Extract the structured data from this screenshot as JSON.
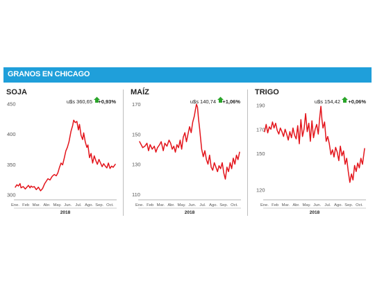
{
  "banner": {
    "title": "GRANOS EN CHICAGO"
  },
  "colors": {
    "banner": "#1f9fda",
    "line": "#e3141b",
    "up_arrow": "#2aa52a",
    "text": "#222222",
    "tick_text": "#555555"
  },
  "chart_data": [
    {
      "type": "line",
      "title": "SOJA",
      "price": "u$s 360,65",
      "change": "+0,93%",
      "change_direction": "up",
      "xlabel": "2018",
      "months": [
        "Ene.",
        "Feb",
        "Mar.",
        "Abr.",
        "May.",
        "Jun.",
        "Jul.",
        "Ago.",
        "Sep.",
        "Oct."
      ],
      "yticks": [
        300,
        350,
        400,
        450
      ],
      "ylim": [
        298,
        452
      ],
      "x": [
        0.0,
        0.15,
        0.3,
        0.45,
        0.55,
        0.75,
        0.95,
        1.1,
        1.25,
        1.4,
        1.5,
        1.65,
        1.8,
        2.0,
        2.2,
        2.4,
        2.6,
        2.7,
        2.8,
        2.95,
        3.1,
        3.3,
        3.5,
        3.7,
        3.9,
        4.05,
        4.2,
        4.35,
        4.5,
        4.65,
        4.8,
        4.95,
        5.1,
        5.2,
        5.3,
        5.45,
        5.55,
        5.7,
        5.85,
        6.0,
        6.1,
        6.25,
        6.4,
        6.5,
        6.65,
        6.8,
        6.9,
        7.05,
        7.2,
        7.35,
        7.5,
        7.65,
        7.8,
        7.95,
        8.1,
        8.25,
        8.4,
        8.55,
        8.7,
        8.85,
        9.0,
        9.15,
        9.3,
        9.5
      ],
      "values": [
        312,
        316,
        314,
        318,
        311,
        313,
        309,
        312,
        315,
        311,
        314,
        312,
        313,
        308,
        312,
        306,
        310,
        314,
        318,
        322,
        326,
        324,
        330,
        333,
        331,
        336,
        345,
        352,
        349,
        360,
        372,
        378,
        387,
        396,
        405,
        414,
        423,
        419,
        421,
        407,
        416,
        398,
        391,
        402,
        387,
        378,
        382,
        361,
        368,
        352,
        364,
        356,
        350,
        358,
        352,
        346,
        351,
        347,
        344,
        352,
        343,
        347,
        345,
        350
      ]
    },
    {
      "type": "line",
      "title": "MAÍZ",
      "price": "u$s 140,74",
      "change": "+1,06%",
      "change_direction": "up",
      "xlabel": "2018",
      "months": [
        "Ene.",
        "Feb",
        "Mar.",
        "Abr.",
        "May.",
        "Jun.",
        "Jul.",
        "Ago.",
        "Sep.",
        "Oct."
      ],
      "yticks": [
        110,
        130,
        150,
        170
      ],
      "ylim": [
        109,
        171
      ],
      "x": [
        0.0,
        0.15,
        0.3,
        0.5,
        0.7,
        0.85,
        1.0,
        1.2,
        1.4,
        1.55,
        1.7,
        1.9,
        2.05,
        2.25,
        2.4,
        2.6,
        2.8,
        2.95,
        3.1,
        3.25,
        3.4,
        3.55,
        3.7,
        3.85,
        4.0,
        4.15,
        4.3,
        4.45,
        4.6,
        4.75,
        4.9,
        5.05,
        5.2,
        5.3,
        5.4,
        5.5,
        5.6,
        5.7,
        5.8,
        5.9,
        6.05,
        6.2,
        6.35,
        6.5,
        6.65,
        6.8,
        6.95,
        7.1,
        7.25,
        7.4,
        7.55,
        7.7,
        7.85,
        8.0,
        8.15,
        8.3,
        8.45,
        8.6,
        8.75,
        8.9,
        9.05,
        9.2,
        9.35,
        9.5
      ],
      "values": [
        145,
        143,
        141,
        142,
        144,
        139,
        143,
        140,
        142,
        138,
        141,
        143,
        145,
        139,
        144,
        142,
        146,
        144,
        140,
        142,
        138,
        143,
        141,
        146,
        140,
        148,
        151,
        145,
        150,
        155,
        151,
        158,
        162,
        166,
        170,
        168,
        160,
        154,
        147,
        140,
        135,
        139,
        133,
        130,
        136,
        128,
        126,
        131,
        128,
        125,
        129,
        127,
        131,
        124,
        120,
        128,
        125,
        131,
        127,
        134,
        130,
        136,
        133,
        138
      ]
    },
    {
      "type": "line",
      "title": "TRIGO",
      "price": "u$s 154,42",
      "change": "+0,06%",
      "change_direction": "up",
      "xlabel": "2018",
      "months": [
        "Ene.",
        "Feb",
        "Mar.",
        "Abr.",
        "May.",
        "Jun.",
        "Jul.",
        "Ago.",
        "Sep.",
        "Oct."
      ],
      "yticks": [
        120,
        150,
        170,
        190
      ],
      "ylim": [
        115,
        192
      ],
      "x": [
        0.0,
        0.15,
        0.3,
        0.45,
        0.6,
        0.75,
        0.9,
        1.05,
        1.2,
        1.35,
        1.5,
        1.65,
        1.8,
        1.95,
        2.1,
        2.25,
        2.4,
        2.55,
        2.7,
        2.85,
        3.0,
        3.15,
        3.3,
        3.45,
        3.6,
        3.75,
        3.9,
        4.05,
        4.2,
        4.35,
        4.5,
        4.65,
        4.8,
        4.95,
        5.1,
        5.25,
        5.35,
        5.45,
        5.55,
        5.7,
        5.85,
        6.0,
        6.15,
        6.3,
        6.45,
        6.6,
        6.75,
        6.9,
        7.05,
        7.2,
        7.35,
        7.5,
        7.65,
        7.8,
        7.95,
        8.1,
        8.25,
        8.4,
        8.55,
        8.7,
        8.85,
        9.0,
        9.15,
        9.3,
        9.5
      ],
      "values": [
        168,
        174,
        167,
        172,
        170,
        176,
        171,
        175,
        169,
        166,
        171,
        168,
        164,
        170,
        166,
        161,
        168,
        163,
        171,
        165,
        162,
        173,
        158,
        178,
        164,
        170,
        183,
        168,
        175,
        160,
        177,
        163,
        170,
        174,
        166,
        181,
        189,
        178,
        171,
        176,
        160,
        164,
        158,
        149,
        153,
        147,
        155,
        151,
        144,
        156,
        148,
        152,
        141,
        146,
        135,
        126,
        133,
        128,
        140,
        135,
        142,
        138,
        146,
        141,
        154
      ]
    }
  ]
}
